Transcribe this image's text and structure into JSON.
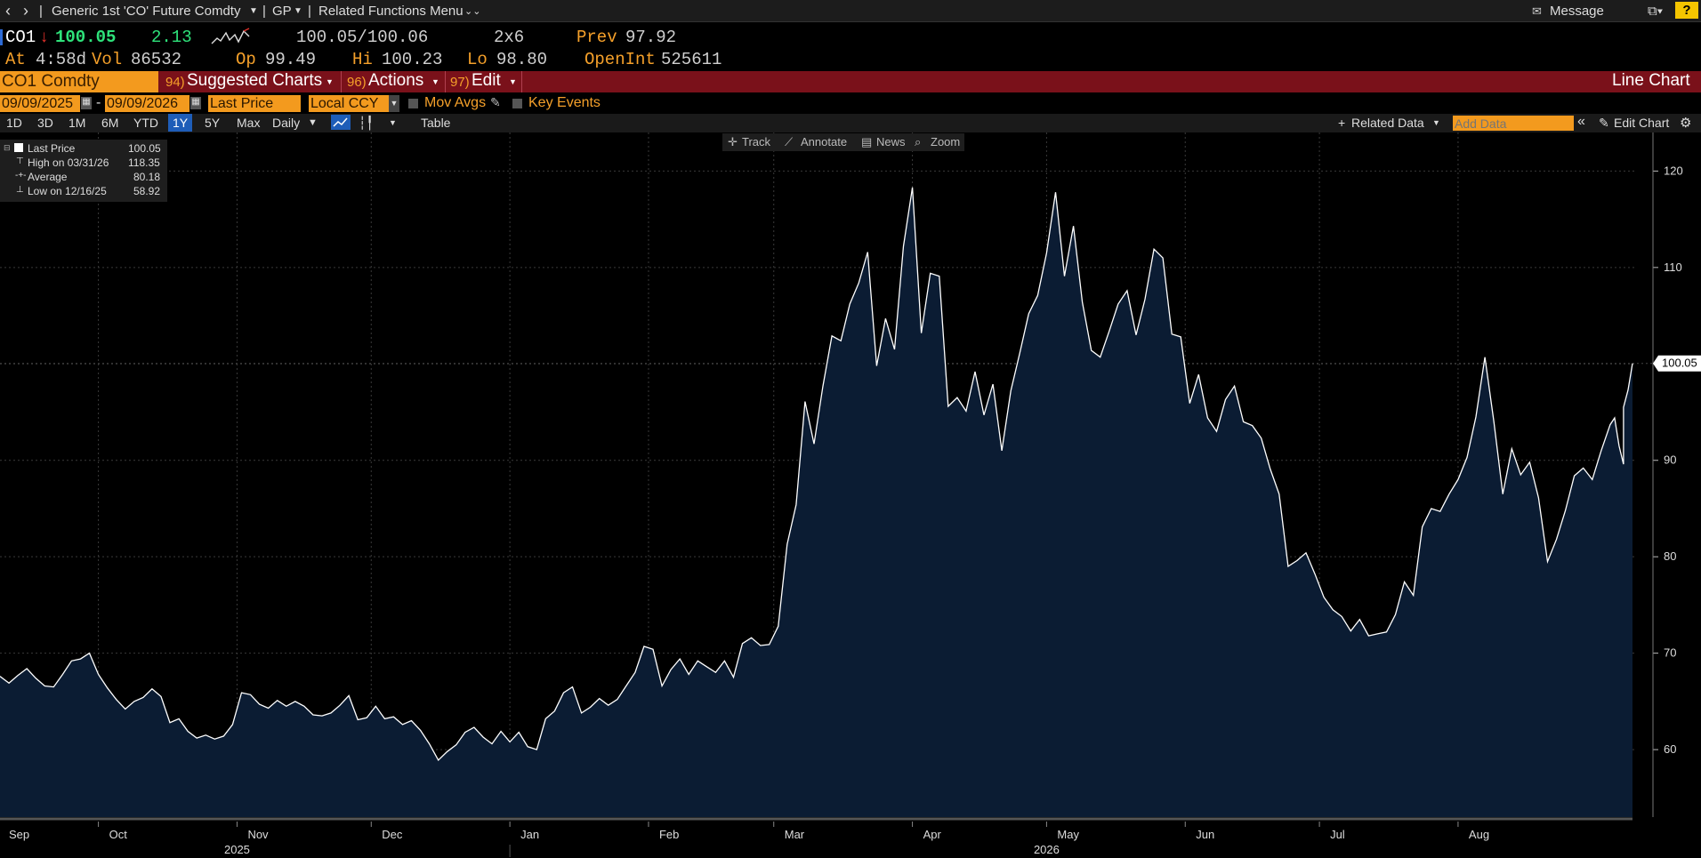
{
  "nav": {
    "back": "‹",
    "forward": "›",
    "security": "Generic 1st 'CO' Future Comdty",
    "gp": "GP",
    "related": "Related Functions Menu",
    "message": "Message",
    "help": "?"
  },
  "quote": {
    "ticker": "CO1",
    "last": "100.05",
    "change": "2.13",
    "bid_ask": "100.05/100.06",
    "size": "2x6",
    "prev_label": "Prev",
    "prev": "97.92",
    "at_label": "At",
    "at_time": "4:58d",
    "vol_label": "Vol",
    "vol": "86532",
    "op_label": "Op",
    "op": "99.49",
    "hi_label": "Hi",
    "hi": "100.23",
    "lo_label": "Lo",
    "lo": "98.80",
    "oi_label": "OpenInt",
    "oi": "525611"
  },
  "menubar": {
    "ticker": "CO1 Comdty",
    "suggested_num": "94)",
    "suggested": "Suggested Charts",
    "actions_num": "96)",
    "actions": "Actions",
    "edit_num": "97)",
    "edit": "Edit",
    "chart_type": "Line Chart"
  },
  "controls": {
    "start_date": "09/09/2025",
    "dash": "-",
    "end_date": "09/09/2026",
    "field": "Last Price",
    "currency": "Local CCY",
    "mov_avgs": "Mov Avgs",
    "key_events": "Key Events"
  },
  "toolbar": {
    "ranges": [
      "1D",
      "3D",
      "1M",
      "6M",
      "YTD",
      "1Y",
      "5Y",
      "Max"
    ],
    "active_range": "1Y",
    "frequency": "Daily",
    "table": "Table",
    "related_data": "Related Data",
    "add_data_placeholder": "Add Data",
    "edit_chart": "Edit Chart"
  },
  "chart_tools": {
    "track": "Track",
    "annotate": "Annotate",
    "news": "News",
    "zoom": "Zoom"
  },
  "legend": {
    "last_label": "Last Price",
    "last_value": "100.05",
    "high_label": "High on 03/31/26",
    "high_value": "118.35",
    "avg_label": "Average",
    "avg_value": "80.18",
    "low_label": "Low on 12/16/25",
    "low_value": "58.92"
  },
  "colors": {
    "line": "#ffffff",
    "fill": "#0b1c33",
    "accent": "#f39a1e",
    "menubar": "#7a111a",
    "up": "#2ee27a"
  },
  "chart_data": {
    "type": "area",
    "xlim": [
      "2025-09-09",
      "2026-09-09"
    ],
    "ylim": [
      53,
      124
    ],
    "yticks": [
      60,
      70,
      80,
      90,
      100,
      110,
      120
    ],
    "grid": true,
    "last_value_label": "100.05",
    "month_ticks": [
      {
        "label": "Sep",
        "date": "2025-09-01"
      },
      {
        "label": "Oct",
        "date": "2025-10-01"
      },
      {
        "label": "Nov",
        "date": "2025-11-01"
      },
      {
        "label": "Dec",
        "date": "2025-12-01"
      },
      {
        "label": "Jan",
        "date": "2026-01-01"
      },
      {
        "label": "Feb",
        "date": "2026-02-01"
      },
      {
        "label": "Mar",
        "date": "2026-03-01"
      },
      {
        "label": "Apr",
        "date": "2026-04-01"
      },
      {
        "label": "May",
        "date": "2026-05-01"
      },
      {
        "label": "Jun",
        "date": "2026-06-01"
      },
      {
        "label": "Jul",
        "date": "2026-07-01"
      },
      {
        "label": "Aug",
        "date": "2026-08-01"
      }
    ],
    "year_labels": [
      {
        "label": "2025",
        "date": "2025-11-01"
      },
      {
        "label": "2026",
        "date": "2026-05-01"
      }
    ],
    "series": [
      {
        "points": [
          [
            "2025-09-09",
            67.6
          ],
          [
            "2025-09-11",
            66.9
          ],
          [
            "2025-09-13",
            67.7
          ],
          [
            "2025-09-15",
            68.4
          ],
          [
            "2025-09-17",
            67.4
          ],
          [
            "2025-09-19",
            66.6
          ],
          [
            "2025-09-21",
            66.5
          ],
          [
            "2025-09-23",
            67.8
          ],
          [
            "2025-09-25",
            69.2
          ],
          [
            "2025-09-27",
            69.4
          ],
          [
            "2025-09-29",
            70.0
          ],
          [
            "2025-10-01",
            67.8
          ],
          [
            "2025-10-03",
            66.4
          ],
          [
            "2025-10-05",
            65.2
          ],
          [
            "2025-10-07",
            64.2
          ],
          [
            "2025-10-09",
            65.0
          ],
          [
            "2025-10-11",
            65.4
          ],
          [
            "2025-10-13",
            66.3
          ],
          [
            "2025-10-15",
            65.5
          ],
          [
            "2025-10-17",
            62.8
          ],
          [
            "2025-10-19",
            63.2
          ],
          [
            "2025-10-21",
            61.9
          ],
          [
            "2025-10-23",
            61.2
          ],
          [
            "2025-10-25",
            61.5
          ],
          [
            "2025-10-27",
            61.1
          ],
          [
            "2025-10-29",
            61.4
          ],
          [
            "2025-10-31",
            62.6
          ],
          [
            "2025-11-02",
            65.9
          ],
          [
            "2025-11-04",
            65.7
          ],
          [
            "2025-11-06",
            64.7
          ],
          [
            "2025-11-08",
            64.3
          ],
          [
            "2025-11-10",
            65.1
          ],
          [
            "2025-11-12",
            64.5
          ],
          [
            "2025-11-14",
            65.0
          ],
          [
            "2025-11-16",
            64.5
          ],
          [
            "2025-11-18",
            63.6
          ],
          [
            "2025-11-20",
            63.5
          ],
          [
            "2025-11-22",
            63.8
          ],
          [
            "2025-11-24",
            64.6
          ],
          [
            "2025-11-26",
            65.6
          ],
          [
            "2025-11-28",
            63.1
          ],
          [
            "2025-11-30",
            63.3
          ],
          [
            "2025-12-02",
            64.5
          ],
          [
            "2025-12-04",
            63.2
          ],
          [
            "2025-12-06",
            63.4
          ],
          [
            "2025-12-08",
            62.6
          ],
          [
            "2025-12-10",
            63.0
          ],
          [
            "2025-12-12",
            62.0
          ],
          [
            "2025-12-14",
            60.6
          ],
          [
            "2025-12-16",
            58.9
          ],
          [
            "2025-12-18",
            59.8
          ],
          [
            "2025-12-20",
            60.5
          ],
          [
            "2025-12-22",
            61.8
          ],
          [
            "2025-12-24",
            62.3
          ],
          [
            "2025-12-26",
            61.3
          ],
          [
            "2025-12-28",
            60.6
          ],
          [
            "2025-12-30",
            61.9
          ],
          [
            "2026-01-01",
            60.8
          ],
          [
            "2026-01-03",
            61.8
          ],
          [
            "2026-01-05",
            60.3
          ],
          [
            "2026-01-07",
            60.0
          ],
          [
            "2026-01-09",
            63.2
          ],
          [
            "2026-01-11",
            64.0
          ],
          [
            "2026-01-13",
            65.9
          ],
          [
            "2026-01-15",
            66.5
          ],
          [
            "2026-01-17",
            63.8
          ],
          [
            "2026-01-19",
            64.4
          ],
          [
            "2026-01-21",
            65.3
          ],
          [
            "2026-01-23",
            64.6
          ],
          [
            "2026-01-25",
            65.2
          ],
          [
            "2026-01-27",
            66.6
          ],
          [
            "2026-01-29",
            68.0
          ],
          [
            "2026-01-31",
            70.7
          ],
          [
            "2026-02-02",
            70.4
          ],
          [
            "2026-02-04",
            66.6
          ],
          [
            "2026-02-06",
            68.3
          ],
          [
            "2026-02-08",
            69.4
          ],
          [
            "2026-02-10",
            67.8
          ],
          [
            "2026-02-12",
            69.2
          ],
          [
            "2026-02-14",
            68.6
          ],
          [
            "2026-02-16",
            68.0
          ],
          [
            "2026-02-18",
            69.2
          ],
          [
            "2026-02-20",
            67.5
          ],
          [
            "2026-02-22",
            71.0
          ],
          [
            "2026-02-24",
            71.6
          ],
          [
            "2026-02-26",
            70.8
          ],
          [
            "2026-02-28",
            70.9
          ],
          [
            "2026-03-02",
            72.8
          ],
          [
            "2026-03-04",
            81.3
          ],
          [
            "2026-03-06",
            85.4
          ],
          [
            "2026-03-08",
            96.1
          ],
          [
            "2026-03-10",
            91.7
          ],
          [
            "2026-03-12",
            97.7
          ],
          [
            "2026-03-14",
            102.9
          ],
          [
            "2026-03-16",
            102.4
          ],
          [
            "2026-03-18",
            106.2
          ],
          [
            "2026-03-20",
            108.4
          ],
          [
            "2026-03-22",
            111.6
          ],
          [
            "2026-03-24",
            99.8
          ],
          [
            "2026-03-26",
            104.7
          ],
          [
            "2026-03-28",
            101.5
          ],
          [
            "2026-03-30",
            112.2
          ],
          [
            "2026-04-01",
            118.3
          ],
          [
            "2026-04-03",
            103.2
          ],
          [
            "2026-04-05",
            109.4
          ],
          [
            "2026-04-07",
            109.1
          ],
          [
            "2026-04-09",
            95.6
          ],
          [
            "2026-04-11",
            96.5
          ],
          [
            "2026-04-13",
            95.1
          ],
          [
            "2026-04-15",
            99.2
          ],
          [
            "2026-04-17",
            94.7
          ],
          [
            "2026-04-19",
            97.9
          ],
          [
            "2026-04-21",
            91.0
          ],
          [
            "2026-04-23",
            97.2
          ],
          [
            "2026-04-25",
            101.1
          ],
          [
            "2026-04-27",
            105.2
          ],
          [
            "2026-04-29",
            107.1
          ],
          [
            "2026-05-01",
            111.5
          ],
          [
            "2026-05-03",
            117.8
          ],
          [
            "2026-05-05",
            109.1
          ],
          [
            "2026-05-07",
            114.3
          ],
          [
            "2026-05-09",
            106.4
          ],
          [
            "2026-05-11",
            101.4
          ],
          [
            "2026-05-13",
            100.7
          ],
          [
            "2026-05-15",
            103.4
          ],
          [
            "2026-05-17",
            106.2
          ],
          [
            "2026-05-19",
            107.6
          ],
          [
            "2026-05-21",
            103.0
          ],
          [
            "2026-05-23",
            106.7
          ],
          [
            "2026-05-25",
            111.9
          ],
          [
            "2026-05-27",
            111.0
          ],
          [
            "2026-05-29",
            103.1
          ],
          [
            "2026-05-31",
            102.8
          ],
          [
            "2026-06-02",
            95.9
          ],
          [
            "2026-06-04",
            98.9
          ],
          [
            "2026-06-06",
            94.4
          ],
          [
            "2026-06-08",
            93.0
          ],
          [
            "2026-06-10",
            96.3
          ],
          [
            "2026-06-12",
            97.7
          ],
          [
            "2026-06-14",
            94.0
          ],
          [
            "2026-06-16",
            93.6
          ],
          [
            "2026-06-18",
            92.3
          ],
          [
            "2026-06-20",
            89.1
          ],
          [
            "2026-06-22",
            86.5
          ],
          [
            "2026-06-24",
            79.0
          ],
          [
            "2026-06-26",
            79.6
          ],
          [
            "2026-06-28",
            80.4
          ],
          [
            "2026-06-30",
            78.2
          ],
          [
            "2026-07-02",
            75.8
          ],
          [
            "2026-07-04",
            74.5
          ],
          [
            "2026-07-06",
            73.8
          ],
          [
            "2026-07-08",
            72.3
          ],
          [
            "2026-07-10",
            73.5
          ],
          [
            "2026-07-12",
            71.8
          ],
          [
            "2026-07-14",
            72.0
          ],
          [
            "2026-07-16",
            72.2
          ],
          [
            "2026-07-18",
            74.0
          ],
          [
            "2026-07-20",
            77.4
          ],
          [
            "2026-07-22",
            76.0
          ],
          [
            "2026-07-24",
            83.1
          ],
          [
            "2026-07-26",
            85.0
          ],
          [
            "2026-07-28",
            84.7
          ],
          [
            "2026-07-30",
            86.5
          ],
          [
            "2026-08-01",
            88.0
          ],
          [
            "2026-08-03",
            90.3
          ],
          [
            "2026-08-05",
            94.5
          ],
          [
            "2026-08-07",
            100.7
          ],
          [
            "2026-08-09",
            94.0
          ],
          [
            "2026-08-11",
            86.5
          ],
          [
            "2026-08-13",
            91.2
          ],
          [
            "2026-08-15",
            88.5
          ],
          [
            "2026-08-17",
            89.8
          ],
          [
            "2026-08-19",
            86.1
          ],
          [
            "2026-08-21",
            79.5
          ],
          [
            "2026-08-23",
            81.8
          ],
          [
            "2026-08-25",
            84.8
          ],
          [
            "2026-08-27",
            88.4
          ],
          [
            "2026-08-29",
            89.2
          ],
          [
            "2026-08-31",
            88.0
          ],
          [
            "2026-09-02",
            91.0
          ],
          [
            "2026-09-04",
            93.7
          ],
          [
            "2026-09-05",
            94.4
          ],
          [
            "2026-09-06",
            91.5
          ],
          [
            "2026-09-07",
            89.6
          ],
          [
            "2026-09-07",
            95.5
          ],
          [
            "2026-09-08",
            97.3
          ],
          [
            "2026-09-09",
            100.05
          ]
        ]
      }
    ]
  }
}
